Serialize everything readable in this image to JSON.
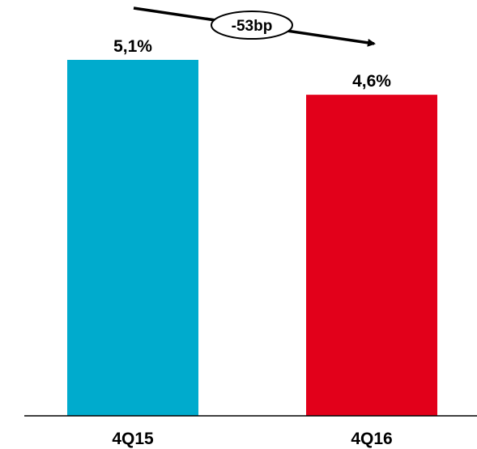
{
  "chart_data": {
    "type": "bar",
    "title": "",
    "xlabel": "",
    "ylabel": "",
    "categories": [
      "4Q15",
      "4Q16"
    ],
    "values": [
      5.1,
      4.6
    ],
    "value_labels": [
      "5,1%",
      "4,6%"
    ],
    "bar_colors": [
      "#00abcd",
      "#e2001a"
    ],
    "ylim": [
      0,
      5.1
    ],
    "grid": false,
    "legend": "none",
    "annotation": {
      "text": "-53bp",
      "style": "arrow-from-first-to-second-bar"
    }
  }
}
